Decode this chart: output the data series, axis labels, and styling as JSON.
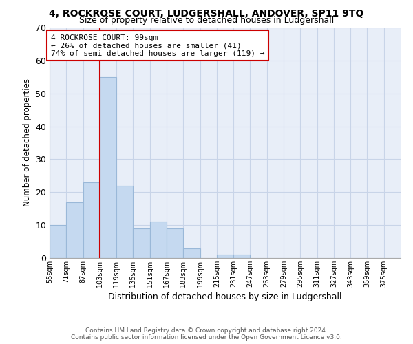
{
  "title_line1": "4, ROCKROSE COURT, LUDGERSHALL, ANDOVER, SP11 9TQ",
  "title_line2": "Size of property relative to detached houses in Ludgershall",
  "xlabel": "Distribution of detached houses by size in Ludgershall",
  "ylabel": "Number of detached properties",
  "categories": [
    "55sqm",
    "71sqm",
    "87sqm",
    "103sqm",
    "119sqm",
    "135sqm",
    "151sqm",
    "167sqm",
    "183sqm",
    "199sqm",
    "215sqm",
    "231sqm",
    "247sqm",
    "263sqm",
    "279sqm",
    "295sqm",
    "311sqm",
    "327sqm",
    "343sqm",
    "359sqm",
    "375sqm"
  ],
  "bin_edges": [
    55,
    71,
    87,
    103,
    119,
    135,
    151,
    167,
    183,
    199,
    215,
    231,
    247,
    263,
    279,
    295,
    311,
    327,
    343,
    359,
    375
  ],
  "values": [
    10,
    17,
    23,
    55,
    22,
    9,
    11,
    9,
    3,
    0,
    1,
    1,
    0,
    0,
    0,
    0,
    0,
    0,
    0,
    0,
    0
  ],
  "bar_color": "#c5d9f0",
  "bar_edge_color": "#9ab8d8",
  "property_line_x": 103,
  "annotation_line1": "4 ROCKROSE COURT: 99sqm",
  "annotation_line2": "← 26% of detached houses are smaller (41)",
  "annotation_line3": "74% of semi-detached houses are larger (119) →",
  "annotation_box_color": "#ffffff",
  "annotation_box_edge": "#cc0000",
  "vline_color": "#cc0000",
  "grid_color": "#c8d4e8",
  "bg_color": "#e8eef8",
  "ylim": [
    0,
    70
  ],
  "yticks": [
    0,
    10,
    20,
    30,
    40,
    50,
    60,
    70
  ],
  "footer_line1": "Contains HM Land Registry data © Crown copyright and database right 2024.",
  "footer_line2": "Contains public sector information licensed under the Open Government Licence v3.0."
}
